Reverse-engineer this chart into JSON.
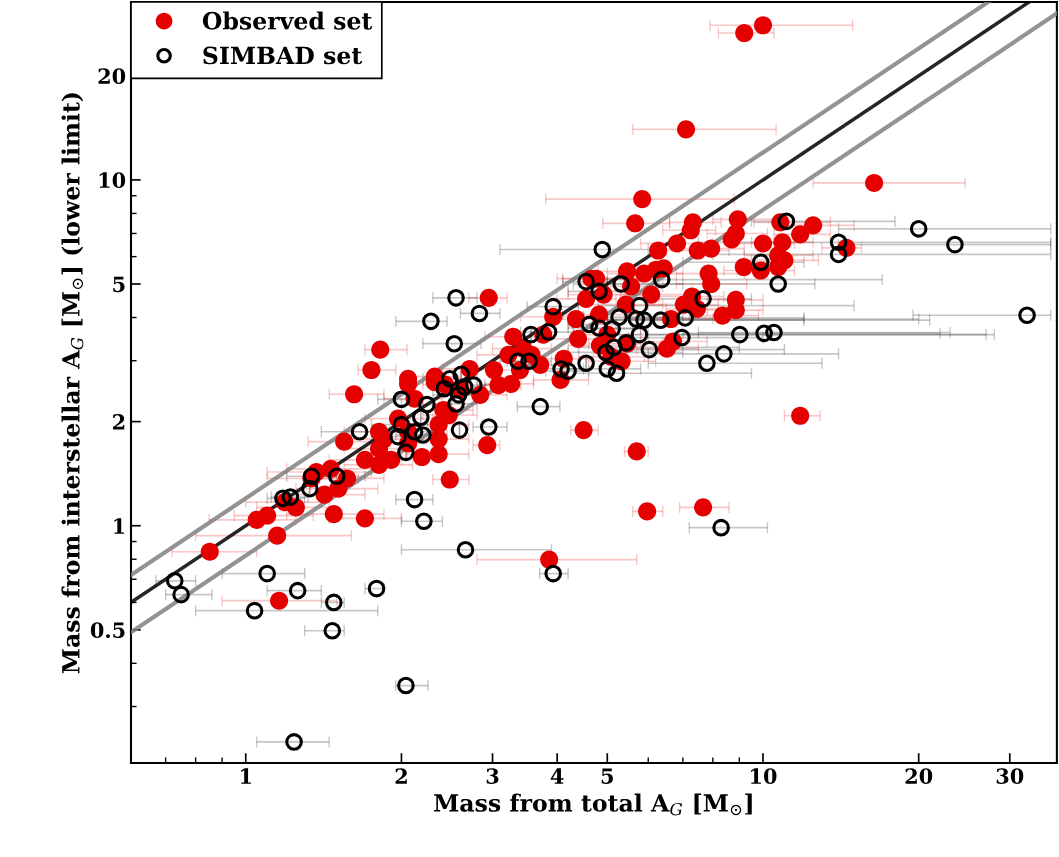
{
  "chart_data": {
    "type": "scatter",
    "xlabel": "Mass from total A$_{G}$ [M$_{⊙}$]",
    "ylabel": "Mass from interstellar A$_{G}$ [M$_{⊙}$] (lower limit)",
    "log": "xy",
    "xlim": [
      0.6,
      37
    ],
    "ylim": [
      0.206,
      32.7
    ],
    "xticks": [
      1,
      2,
      3,
      4,
      5,
      10,
      20,
      30
    ],
    "yticks": [
      0.5,
      1,
      2,
      5,
      10,
      20
    ],
    "legend": "top left",
    "grid": false,
    "series": [
      {
        "type": "line",
        "color": "#808080",
        "x": [
          0.6,
          27.25
        ],
        "values": [
          0.72,
          32.7
        ]
      },
      {
        "type": "line",
        "color": "#000000",
        "x": [
          0.6,
          32.7
        ],
        "values": [
          0.6,
          32.7
        ]
      },
      {
        "type": "line",
        "color": "#808080",
        "x": [
          0.6,
          37
        ],
        "values": [
          0.492,
          30.3
        ]
      },
      {
        "type": "scatter",
        "name": "Observed set",
        "color": "#e50000",
        "marker": "circle",
        "x": [
          10.0,
          9.2,
          7.1,
          16.4,
          5.84,
          5.66,
          7.32,
          7.25,
          8.94,
          10.8,
          12.5,
          11.8,
          8.86,
          8.7,
          10.0,
          10.9,
          14.5,
          6.82,
          6.27,
          7.48,
          7.94,
          10.7,
          11.0,
          9.18,
          9.9,
          10.7,
          5.46,
          5.89,
          6.21,
          6.43,
          7.85,
          7.94,
          5.56,
          6.08,
          7.29,
          7.45,
          8.86,
          8.86,
          8.35,
          6.64,
          6.52,
          6.7,
          5.46,
          5.0,
          5.09,
          5.33,
          4.76,
          4.92,
          5.43,
          7.03,
          4.82,
          2.95,
          1.82,
          1.75,
          2.06,
          2.32,
          2.71,
          3.02,
          3.29,
          3.44,
          3.22,
          3.57,
          3.93,
          4.35,
          4.39,
          4.55,
          4.66,
          4.12,
          3.76,
          1.62,
          2.12,
          1.55,
          1.81,
          1.85,
          1.81,
          1.7,
          1.81,
          1.91,
          2.06,
          2.06,
          1.97,
          2.19,
          2.36,
          2.36,
          2.36,
          2.47,
          2.41,
          2.93,
          2.48,
          4.5,
          3.86,
          1.37,
          1.46,
          1.34,
          1.57,
          1.42,
          1.51,
          1.19,
          1.25,
          1.05,
          1.1,
          1.48,
          1.7,
          1.15,
          0.852,
          1.16,
          3.08,
          3.26,
          2.06,
          2.32,
          11.8,
          5.7,
          5.97,
          7.66,
          2.43,
          2.6,
          2.84,
          3.39,
          3.71,
          4.06,
          4.84
        ],
        "values": [
          28.0,
          26.6,
          14.0,
          9.8,
          8.8,
          7.49,
          7.54,
          7.15,
          7.69,
          7.54,
          7.39,
          6.96,
          7.0,
          6.73,
          6.55,
          6.6,
          6.36,
          6.55,
          6.25,
          6.25,
          6.33,
          6.05,
          5.85,
          5.6,
          5.47,
          5.6,
          5.44,
          5.36,
          5.5,
          5.55,
          5.36,
          5.0,
          4.92,
          4.66,
          4.6,
          4.24,
          4.5,
          4.2,
          4.05,
          3.96,
          3.25,
          3.41,
          3.36,
          3.57,
          3.08,
          2.99,
          5.18,
          4.66,
          4.36,
          4.36,
          4.08,
          4.56,
          3.23,
          2.82,
          2.66,
          2.7,
          2.84,
          2.82,
          3.52,
          3.25,
          3.12,
          3.12,
          4.02,
          3.96,
          3.47,
          4.53,
          5.18,
          3.04,
          3.57,
          2.4,
          2.33,
          1.75,
          1.87,
          1.78,
          1.67,
          1.55,
          1.5,
          1.55,
          1.73,
          1.87,
          2.04,
          1.58,
          1.61,
          1.78,
          1.96,
          2.09,
          2.16,
          1.71,
          1.36,
          1.89,
          0.798,
          1.43,
          1.46,
          1.37,
          1.37,
          1.23,
          1.28,
          1.17,
          1.13,
          1.04,
          1.07,
          1.08,
          1.05,
          0.936,
          0.841,
          0.607,
          2.55,
          2.57,
          2.57,
          2.6,
          2.08,
          1.64,
          1.1,
          1.13,
          2.56,
          2.47,
          2.39,
          2.82,
          2.92,
          2.64,
          3.32
        ],
        "xerrors": [
          [
            7.9,
            14.9
          ],
          [
            8.2,
            10.5
          ],
          [
            5.6,
            10.6
          ],
          [
            12.5,
            24.6
          ],
          [
            3.8,
            8.8
          ],
          [
            4.9,
            6.6
          ],
          [
            6.6,
            8.3
          ],
          [
            6.4,
            8.1
          ],
          [
            8.0,
            10.8
          ],
          [
            9.6,
            13.5
          ],
          [
            11.0,
            15.0
          ],
          [
            10.5,
            13.5
          ],
          [
            7.8,
            10.2
          ],
          null,
          [
            8.8,
            11.5
          ],
          [
            9.5,
            12.5
          ],
          [
            13.0,
            15.5
          ],
          [
            5.8,
            8.0
          ],
          null,
          [
            6.5,
            8.6
          ],
          [
            6.9,
            9.2
          ],
          [
            9.2,
            12.5
          ],
          [
            9.5,
            12.8
          ],
          null,
          [
            8.4,
            11.5
          ],
          null,
          [
            4.8,
            6.2
          ],
          [
            5.0,
            7.0
          ],
          null,
          null,
          [
            6.8,
            9.2
          ],
          [
            6.8,
            9.3
          ],
          [
            4.9,
            6.4
          ],
          [
            5.3,
            7.1
          ],
          [
            6.3,
            8.4
          ],
          [
            6.5,
            8.6
          ],
          [
            7.8,
            10.0
          ],
          [
            7.8,
            10.0
          ],
          [
            7.2,
            9.8
          ],
          [
            5.4,
            8.0
          ],
          [
            5.7,
            7.5
          ],
          [
            5.8,
            7.8
          ],
          [
            4.6,
            6.4
          ],
          [
            4.3,
            5.8
          ],
          [
            4.4,
            5.9
          ],
          [
            4.6,
            6.2
          ],
          [
            4.1,
            5.6
          ],
          [
            4.2,
            5.8
          ],
          [
            4.6,
            6.4
          ],
          [
            6.0,
            8.2
          ],
          [
            4.1,
            5.7
          ],
          [
            2.7,
            3.2
          ],
          [
            1.7,
            2.05
          ],
          [
            1.65,
            1.95
          ],
          null,
          [
            2.1,
            2.6
          ],
          [
            2.4,
            3.1
          ],
          [
            2.7,
            3.4
          ],
          [
            2.9,
            3.7
          ],
          [
            3.0,
            3.9
          ],
          [
            2.8,
            3.6
          ],
          null,
          [
            3.4,
            4.5
          ],
          [
            3.8,
            5.0
          ],
          [
            3.8,
            5.0
          ],
          [
            4.0,
            5.2
          ],
          [
            4.0,
            5.4
          ],
          [
            3.6,
            4.7
          ],
          null,
          [
            1.45,
            1.85
          ],
          [
            1.85,
            2.4
          ],
          [
            1.32,
            1.9
          ],
          [
            1.55,
            2.1
          ],
          [
            1.6,
            2.1
          ],
          [
            1.55,
            2.1
          ],
          [
            1.45,
            2.0
          ],
          [
            1.55,
            2.1
          ],
          null,
          null,
          null,
          [
            1.7,
            2.3
          ],
          null,
          [
            2.05,
            2.7
          ],
          [
            2.05,
            2.7
          ],
          [
            2.05,
            2.7
          ],
          [
            2.2,
            2.8
          ],
          [
            2.15,
            2.75
          ],
          [
            2.75,
            3.1
          ],
          [
            2.3,
            2.7
          ],
          [
            4.25,
            4.8
          ],
          [
            2.8,
            5.7
          ],
          [
            1.1,
            1.75
          ],
          [
            1.2,
            1.75
          ],
          [
            1.1,
            1.65
          ],
          [
            1.3,
            1.85
          ],
          [
            1.2,
            1.7
          ],
          [
            1.25,
            1.8
          ],
          [
            1.0,
            1.4
          ],
          [
            1.05,
            1.45
          ],
          [
            0.85,
            1.25
          ],
          [
            0.95,
            1.35
          ],
          [
            1.2,
            1.85
          ],
          [
            1.45,
            2.0
          ],
          [
            0.8,
            1.6
          ],
          [
            0.72,
            1.05
          ],
          [
            0.9,
            1.5
          ],
          [
            2.8,
            3.4
          ],
          [
            2.9,
            3.6
          ],
          null,
          null,
          [
            11.0,
            12.9
          ],
          [
            5.4,
            6.0
          ],
          [
            5.6,
            6.4
          ],
          [
            6.9,
            8.6
          ],
          [
            2.2,
            2.7
          ],
          [
            2.35,
            2.9
          ],
          [
            2.55,
            3.2
          ],
          null,
          [
            3.3,
            4.2
          ],
          [
            3.6,
            4.6
          ],
          [
            4.2,
            5.5
          ]
        ]
      },
      {
        "type": "scatter",
        "name": "SIMBAD set",
        "color": "#000000",
        "marker": "circle-open",
        "x": [
          2.55,
          2.83,
          2.28,
          2.53,
          3.93,
          3.56,
          3.85,
          3.36,
          3.53,
          4.07,
          4.2,
          4.55,
          4.62,
          4.55,
          2.48,
          2.61,
          11.1,
          20.0,
          23.5,
          14.0,
          14.0,
          9.9,
          6.37,
          10.7,
          5.32,
          4.89,
          4.82,
          7.66,
          5.77,
          5.27,
          5.69,
          5.89,
          6.34,
          7.07,
          6.97,
          5.77,
          9.02,
          10.05,
          10.5,
          32.4,
          8.4,
          6.03,
          7.79,
          5.15,
          4.97,
          5.0,
          5.21,
          4.82,
          5.44,
          5.11,
          2.0,
          2.24,
          2.18,
          2.55,
          2.58,
          2.42,
          2.65,
          2.76,
          3.71,
          2.95,
          2.59,
          1.66,
          2.0,
          1.97,
          2.12,
          2.2,
          2.04,
          1.5,
          1.34,
          1.33,
          1.18,
          1.22,
          2.12,
          2.21,
          2.66,
          3.93,
          0.729,
          0.75,
          1.1,
          1.26,
          1.79,
          1.48,
          1.04,
          1.47,
          2.04,
          1.24,
          8.3
        ],
        "values": [
          4.56,
          4.11,
          3.9,
          3.36,
          4.3,
          3.57,
          3.63,
          2.99,
          2.99,
          2.84,
          2.8,
          5.08,
          3.82,
          2.95,
          2.66,
          2.74,
          7.59,
          7.22,
          6.5,
          6.6,
          6.09,
          5.78,
          5.15,
          5.0,
          5.0,
          6.29,
          4.76,
          4.53,
          4.33,
          4.01,
          3.96,
          3.93,
          3.93,
          3.99,
          3.5,
          3.57,
          3.57,
          3.6,
          3.62,
          4.06,
          3.14,
          3.23,
          2.95,
          3.28,
          3.17,
          2.84,
          2.76,
          3.73,
          3.38,
          3.71,
          2.32,
          2.24,
          2.06,
          2.25,
          2.39,
          2.49,
          2.52,
          2.55,
          2.21,
          1.93,
          1.89,
          1.87,
          1.96,
          1.81,
          1.87,
          1.83,
          1.63,
          1.39,
          1.39,
          1.28,
          1.2,
          1.21,
          1.19,
          1.03,
          0.852,
          0.727,
          0.693,
          0.632,
          0.727,
          0.649,
          0.658,
          0.6,
          0.568,
          0.497,
          0.345,
          0.237,
          0.987
        ],
        "xerrors": [
          [
            2.3,
            2.8
          ],
          [
            2.6,
            3.1
          ],
          [
            1.95,
            2.45
          ],
          [
            2.2,
            2.85
          ],
          [
            3.5,
            4.4
          ],
          null,
          [
            3.4,
            4.3
          ],
          [
            3.1,
            3.7
          ],
          [
            3.2,
            3.9
          ],
          [
            3.7,
            4.5
          ],
          [
            3.8,
            4.6
          ],
          [
            4.1,
            5.0
          ],
          [
            4.2,
            5.2
          ],
          null,
          [
            2.2,
            2.8
          ],
          null,
          [
            9.5,
            18
          ],
          [
            14,
            36
          ],
          [
            14,
            36
          ],
          [
            7.5,
            36
          ],
          [
            8.0,
            36
          ],
          [
            7.0,
            12.0
          ],
          [
            4.9,
            17
          ],
          [
            5.0,
            12.6
          ],
          [
            4.3,
            7.0
          ],
          [
            3.1,
            6.0
          ],
          [
            4.2,
            5.5
          ],
          [
            5.5,
            9.5
          ],
          [
            4.8,
            15
          ],
          [
            4.5,
            7.0
          ],
          [
            4.8,
            20
          ],
          [
            5.0,
            21
          ],
          [
            5.0,
            12
          ],
          [
            5.5,
            12
          ],
          [
            5.5,
            10
          ],
          [
            5.0,
            28
          ],
          [
            6.0,
            27
          ],
          [
            7.0,
            22
          ],
          [
            7.5,
            23
          ],
          [
            19.5,
            36
          ],
          [
            6.0,
            14
          ],
          [
            5.0,
            11
          ],
          [
            6.0,
            13
          ],
          [
            4.4,
            9.0
          ],
          [
            4.2,
            7.0
          ],
          [
            4.2,
            5.8
          ],
          [
            4.3,
            9.5
          ],
          [
            4.2,
            5.6
          ],
          null,
          [
            4.5,
            5.8
          ],
          [
            1.8,
            2.2
          ],
          [
            2.0,
            2.5
          ],
          null,
          [
            2.3,
            2.8
          ],
          [
            2.3,
            2.85
          ],
          null,
          [
            2.4,
            2.9
          ],
          [
            2.5,
            3.0
          ],
          [
            3.35,
            4.05
          ],
          [
            2.75,
            3.2
          ],
          null,
          [
            1.4,
            2.0
          ],
          [
            1.75,
            2.25
          ],
          [
            1.75,
            2.2
          ],
          [
            1.9,
            2.4
          ],
          [
            1.95,
            2.45
          ],
          null,
          [
            1.3,
            1.7
          ],
          [
            1.2,
            1.5
          ],
          null,
          [
            1.1,
            1.3
          ],
          [
            1.12,
            1.32
          ],
          [
            1.95,
            2.3
          ],
          [
            2.0,
            2.4
          ],
          [
            2.0,
            3.9
          ],
          [
            3.7,
            4.2
          ],
          [
            0.67,
            0.8
          ],
          [
            0.7,
            0.86
          ],
          [
            0.9,
            1.3
          ],
          [
            1.1,
            1.4
          ],
          [
            1.7,
            1.85
          ],
          [
            1.4,
            1.55
          ],
          [
            0.8,
            1.8
          ],
          [
            1.3,
            1.55
          ],
          [
            1.95,
            2.25
          ],
          [
            1.05,
            1.45
          ],
          [
            7.2,
            10.2
          ]
        ]
      }
    ]
  }
}
